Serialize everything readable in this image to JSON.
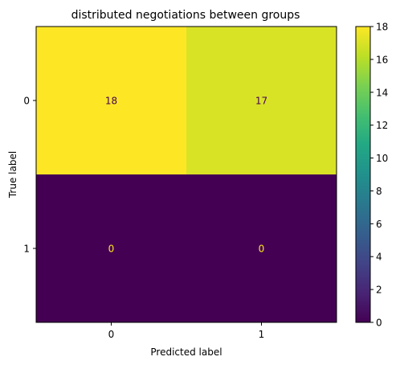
{
  "chart_data": {
    "type": "heatmap",
    "title": "distributed negotiations between groups",
    "xlabel": "Predicted label",
    "ylabel": "True label",
    "x_categories": [
      "0",
      "1"
    ],
    "y_categories": [
      "0",
      "1"
    ],
    "matrix": [
      [
        18,
        17
      ],
      [
        0,
        0
      ]
    ],
    "cell_labels": [
      [
        "18",
        "17"
      ],
      [
        "0",
        "0"
      ]
    ],
    "colormap": "viridis",
    "colorbar": {
      "range": [
        0,
        18
      ],
      "ticks": [
        0,
        2,
        4,
        6,
        8,
        10,
        12,
        14,
        16,
        18
      ],
      "tick_labels": [
        "0",
        "2",
        "4",
        "6",
        "8",
        "10",
        "12",
        "14",
        "16",
        "18"
      ]
    },
    "grid": false,
    "colors": {
      "low": "#440154",
      "high": "#fde725",
      "text_on_low": "#fde725",
      "text_on_high": "#440154"
    }
  }
}
